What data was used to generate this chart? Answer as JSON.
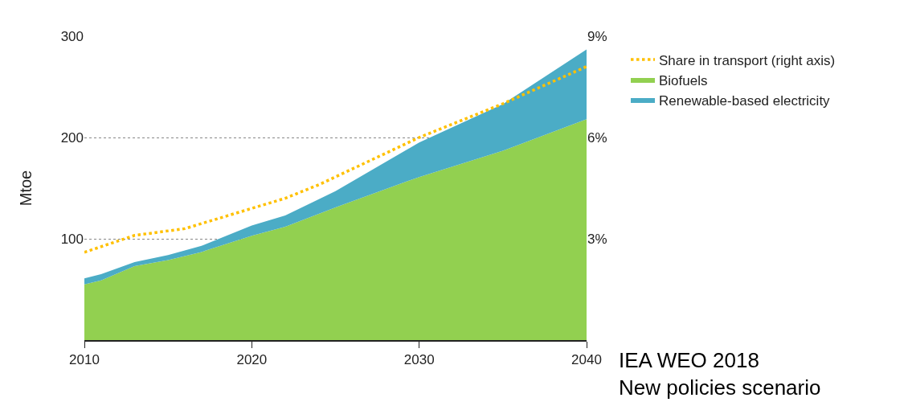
{
  "chart_data": {
    "type": "area",
    "stacked": true,
    "ylabel": "Mtoe",
    "x": [
      2010,
      2011,
      2013,
      2015,
      2017,
      2020,
      2022,
      2025,
      2030,
      2035,
      2040
    ],
    "series": [
      {
        "name": "Biofuels",
        "color": "#92d050",
        "values": [
          55,
          59,
          73,
          79,
          87,
          103,
          112,
          131,
          161,
          187,
          218
        ]
      },
      {
        "name": "Renewable-based electricity",
        "color": "#4bacc6",
        "values": [
          6,
          6,
          4,
          5,
          6,
          10,
          11,
          16,
          34,
          46,
          69
        ]
      },
      {
        "name": "Share in transport (right axis)",
        "type": "line",
        "axis": "y2",
        "color": "#ffc000",
        "line_style": "dotted",
        "x": [
          2010,
          2013,
          2016,
          2018,
          2020,
          2022,
          2024,
          2030,
          2035,
          2040
        ],
        "values": [
          2.6,
          3.1,
          3.3,
          3.6,
          3.9,
          4.2,
          4.6,
          6.0,
          7.0,
          8.1
        ]
      }
    ],
    "xlim": [
      2010,
      2040
    ],
    "xticks": [
      2010,
      2020,
      2030,
      2040
    ],
    "ylim": [
      0,
      300
    ],
    "yticks": [
      100,
      200,
      300
    ],
    "y2lim": [
      0,
      9
    ],
    "y2ticks": [
      {
        "value": 3,
        "label": "3%"
      },
      {
        "value": 6,
        "label": "6%"
      },
      {
        "value": 9,
        "label": "9%"
      }
    ],
    "grid": "y",
    "legend": "right",
    "annotations": [
      "IEA WEO 2018\nNew policies scenario"
    ]
  }
}
